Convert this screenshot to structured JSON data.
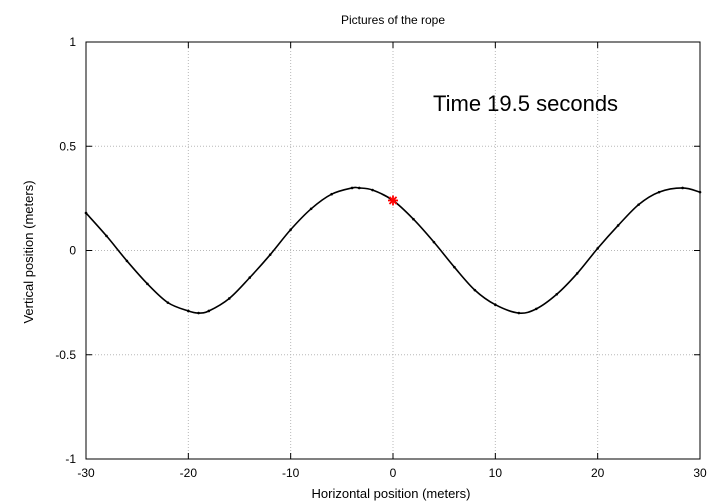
{
  "chart_data": {
    "type": "line",
    "title": "Pictures of the rope",
    "xlabel": "Horizontal position (meters)",
    "ylabel": "Vertical position (meters)",
    "xlim": [
      -30,
      30
    ],
    "ylim": [
      -1,
      1
    ],
    "xticks": [
      -30,
      -20,
      -10,
      0,
      10,
      20,
      30
    ],
    "xtick_labels": [
      "-30",
      "-20",
      "-10",
      "0",
      "10",
      "20",
      "30"
    ],
    "yticks": [
      -1,
      -0.5,
      0,
      0.5,
      1
    ],
    "ytick_labels": [
      "-1",
      "-0.5",
      "0",
      "0.5",
      "1"
    ],
    "grid": true,
    "annotation": "Time 19.5 seconds",
    "series": [
      {
        "color": "#000000",
        "marker": "small-dots",
        "x": [
          -30,
          -28,
          -26,
          -24,
          -22,
          -20,
          -19,
          -18,
          -16,
          -14,
          -12,
          -10,
          -8,
          -6,
          -4,
          -3.3,
          -2,
          0,
          2,
          4,
          6,
          8,
          10,
          12.3,
          14,
          16,
          18,
          20,
          22,
          24,
          26,
          28.3,
          30
        ],
        "y": [
          0.18,
          0.07,
          -0.05,
          -0.16,
          -0.25,
          -0.29,
          -0.3,
          -0.29,
          -0.23,
          -0.13,
          -0.02,
          0.1,
          0.2,
          0.27,
          0.3,
          0.3,
          0.29,
          0.24,
          0.15,
          0.04,
          -0.08,
          -0.19,
          -0.26,
          -0.3,
          -0.28,
          -0.21,
          -0.11,
          0.01,
          0.12,
          0.22,
          0.28,
          0.3,
          0.28
        ]
      }
    ],
    "highlight_point": {
      "x": 0,
      "y": 0.24,
      "color": "#ff0000",
      "marker": "star"
    }
  }
}
